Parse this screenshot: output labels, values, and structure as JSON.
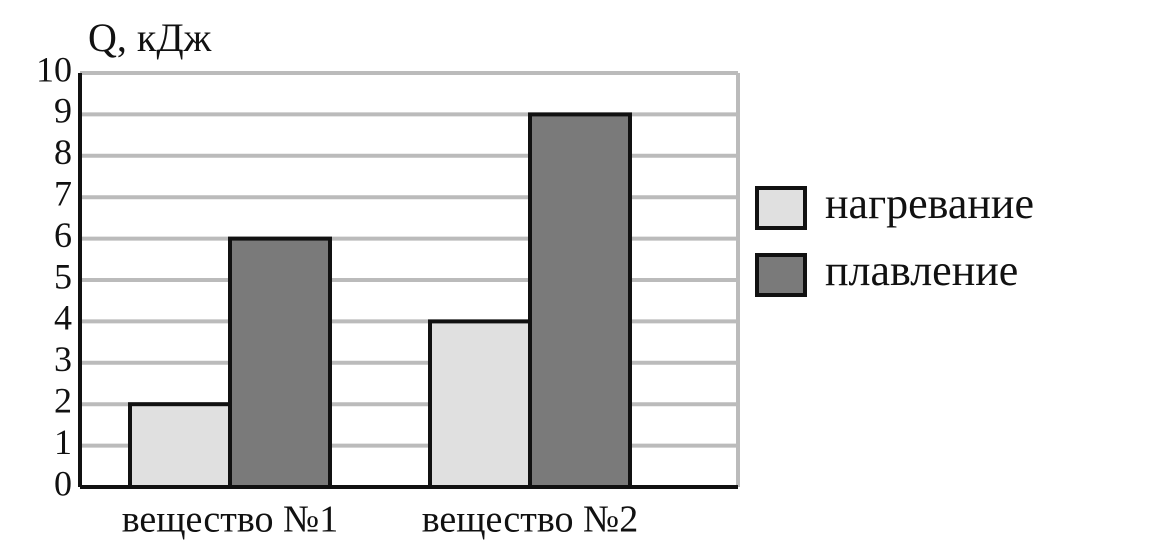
{
  "chart_data": {
    "type": "bar",
    "y_label": "Q, кДж",
    "categories": [
      "вещество №1",
      "вещество №2"
    ],
    "series": [
      {
        "name": "нагревание",
        "color": "#e0e0e0",
        "values": [
          2,
          4
        ]
      },
      {
        "name": "плавление",
        "color": "#7a7a7a",
        "values": [
          6,
          9
        ]
      }
    ],
    "ylim": [
      0,
      10
    ],
    "yticks": [
      0,
      1,
      2,
      3,
      4,
      5,
      6,
      7,
      8,
      9,
      10
    ],
    "grid": true,
    "legend": "right"
  }
}
